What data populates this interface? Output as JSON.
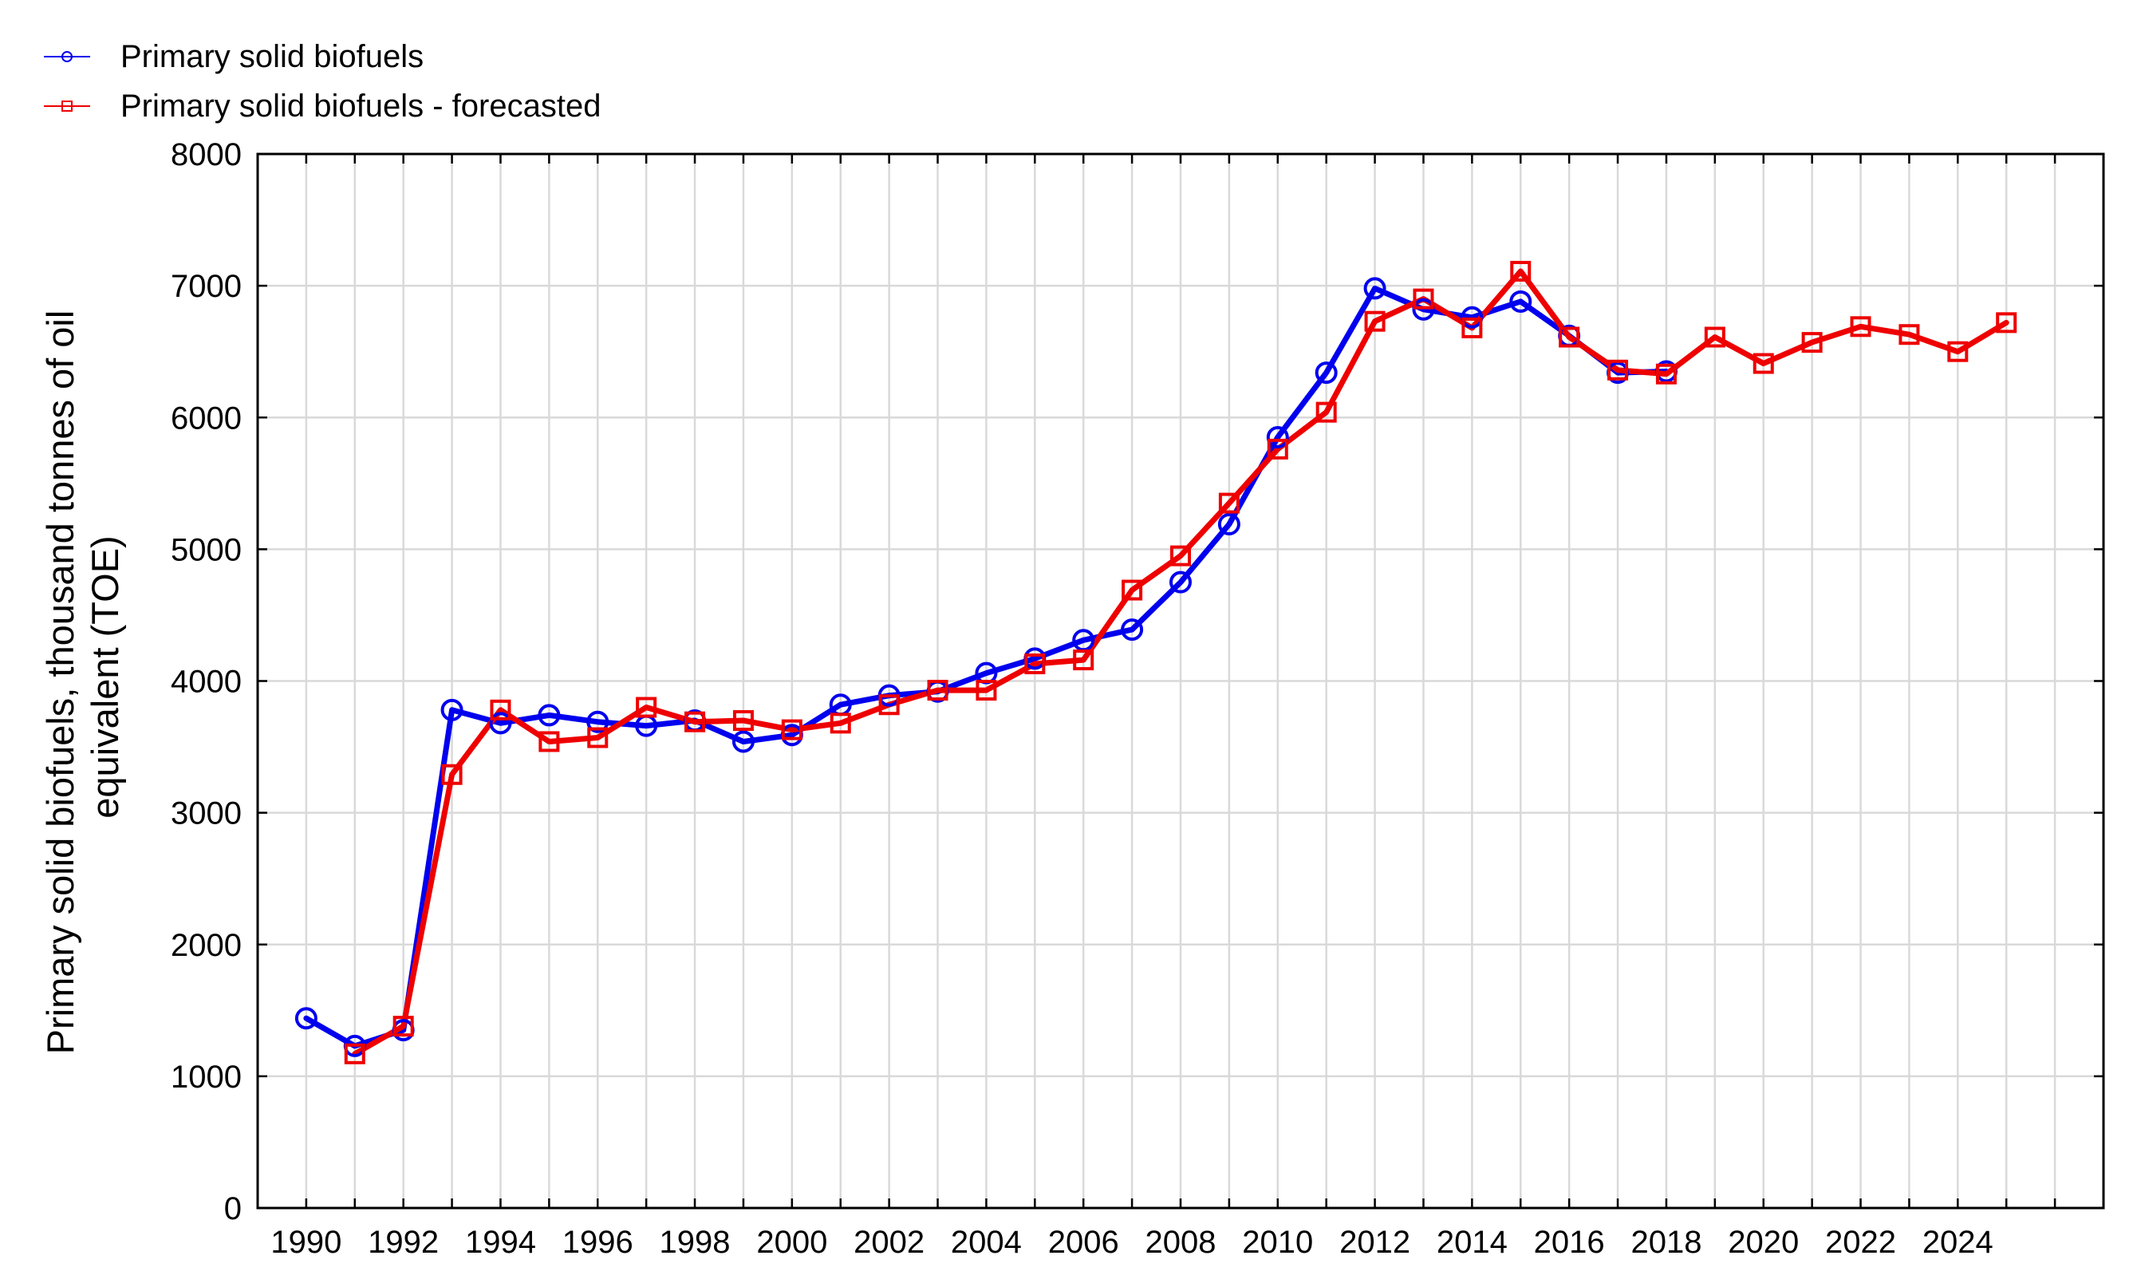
{
  "colors": {
    "observed": "#0000ee",
    "forecasted": "#ee0000",
    "grid": "#d9d9d9",
    "axis": "#000000"
  },
  "chart_data": {
    "type": "line",
    "title": "",
    "xlabel": "",
    "ylabel": "Primary solid biofuels,  thousand tonnes of oil equivalent (TOE)",
    "ylabel_lines": [
      "Primary solid biofuels,  thousand tonnes of oil",
      "equivalent (TOE)"
    ],
    "xlim": [
      1989,
      2027
    ],
    "ylim": [
      0,
      8000
    ],
    "xticks": [
      1990,
      1992,
      1994,
      1996,
      1998,
      2000,
      2002,
      2004,
      2006,
      2008,
      2010,
      2012,
      2014,
      2016,
      2018,
      2020,
      2022,
      2024
    ],
    "yticks": [
      0,
      1000,
      2000,
      3000,
      4000,
      5000,
      6000,
      7000,
      8000
    ],
    "grid": true,
    "legend_position": "top-left",
    "series": [
      {
        "name": "Primary solid biofuels",
        "marker": "circle",
        "color": "#0000ee",
        "x": [
          1990,
          1991,
          1992,
          1993,
          1994,
          1995,
          1996,
          1997,
          1998,
          1999,
          2000,
          2001,
          2002,
          2003,
          2004,
          2005,
          2006,
          2007,
          2008,
          2009,
          2010,
          2011,
          2012,
          2013,
          2014,
          2015,
          2016,
          2017,
          2018
        ],
        "values": [
          1440,
          1230,
          1350,
          3780,
          3680,
          3740,
          3690,
          3660,
          3700,
          3540,
          3590,
          3820,
          3890,
          3920,
          4060,
          4170,
          4310,
          4390,
          4750,
          5190,
          5850,
          6340,
          6980,
          6820,
          6760,
          6880,
          6620,
          6340,
          6350
        ]
      },
      {
        "name": "Primary solid biofuels - forecasted",
        "marker": "square",
        "color": "#ee0000",
        "x": [
          1991,
          1992,
          1993,
          1994,
          1995,
          1996,
          1997,
          1998,
          1999,
          2000,
          2001,
          2002,
          2003,
          2004,
          2005,
          2006,
          2007,
          2008,
          2009,
          2010,
          2011,
          2012,
          2013,
          2014,
          2015,
          2016,
          2017,
          2018,
          2019,
          2020,
          2021,
          2022,
          2023,
          2024,
          2025
        ],
        "values": [
          1170,
          1380,
          3290,
          3780,
          3540,
          3570,
          3800,
          3690,
          3700,
          3630,
          3680,
          3820,
          3930,
          3930,
          4130,
          4160,
          4690,
          4950,
          5350,
          5760,
          6040,
          6730,
          6900,
          6680,
          7110,
          6610,
          6360,
          6330,
          6610,
          6410,
          6570,
          6690,
          6630,
          6500,
          6720
        ]
      }
    ]
  }
}
